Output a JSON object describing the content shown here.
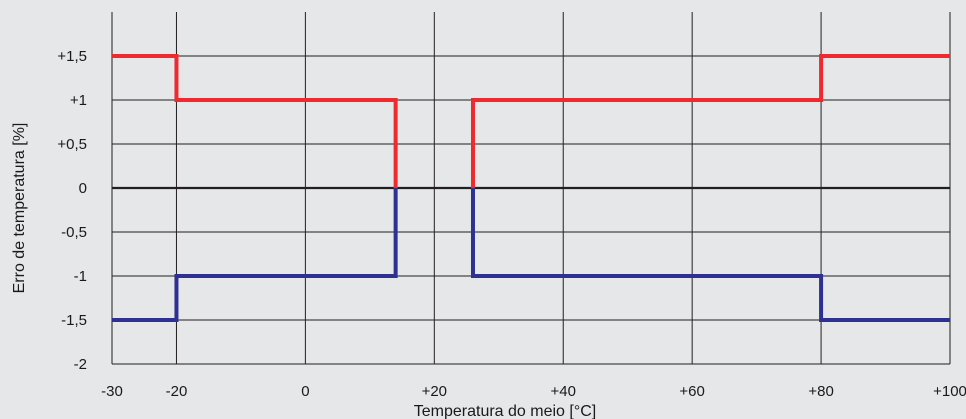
{
  "chart_data": {
    "type": "line",
    "title": "",
    "xlabel": "Temperatura do meio [°C]",
    "ylabel": "Erro de temperatura [%]",
    "xlim": [
      -30,
      100
    ],
    "ylim": [
      -2,
      1.5
    ],
    "x_ticks": [
      -30,
      -20,
      0,
      20,
      40,
      60,
      80,
      100
    ],
    "x_tick_labels": [
      "-30",
      "-20",
      "0",
      "+20",
      "+40",
      "+60",
      "+80",
      "+100"
    ],
    "y_ticks": [
      1.5,
      1,
      0.5,
      0,
      -0.5,
      -1,
      -1.5,
      -2
    ],
    "y_tick_labels": [
      "+1,5",
      "+1",
      "+0,5",
      "0",
      "-0,5",
      "-1",
      "-1,5",
      "-2"
    ],
    "grid": true,
    "legend": "none",
    "series": [
      {
        "color": "#ee2a2f",
        "segments": [
          [
            [
              -30,
              1.5
            ],
            [
              -20,
              1.5
            ],
            [
              -20,
              1
            ],
            [
              14,
              1
            ],
            [
              14,
              0
            ]
          ],
          [
            [
              26,
              0
            ],
            [
              26,
              1
            ],
            [
              80,
              1
            ],
            [
              80,
              1.5
            ],
            [
              100,
              1.5
            ]
          ]
        ]
      },
      {
        "color": "#2e3192",
        "segments": [
          [
            [
              -30,
              -1.5
            ],
            [
              -20,
              -1.5
            ],
            [
              -20,
              -1
            ],
            [
              14,
              -1
            ],
            [
              14,
              0
            ]
          ],
          [
            [
              26,
              0
            ],
            [
              26,
              -1
            ],
            [
              80,
              -1
            ],
            [
              80,
              -1.5
            ],
            [
              100,
              -1.5
            ]
          ]
        ]
      }
    ]
  }
}
